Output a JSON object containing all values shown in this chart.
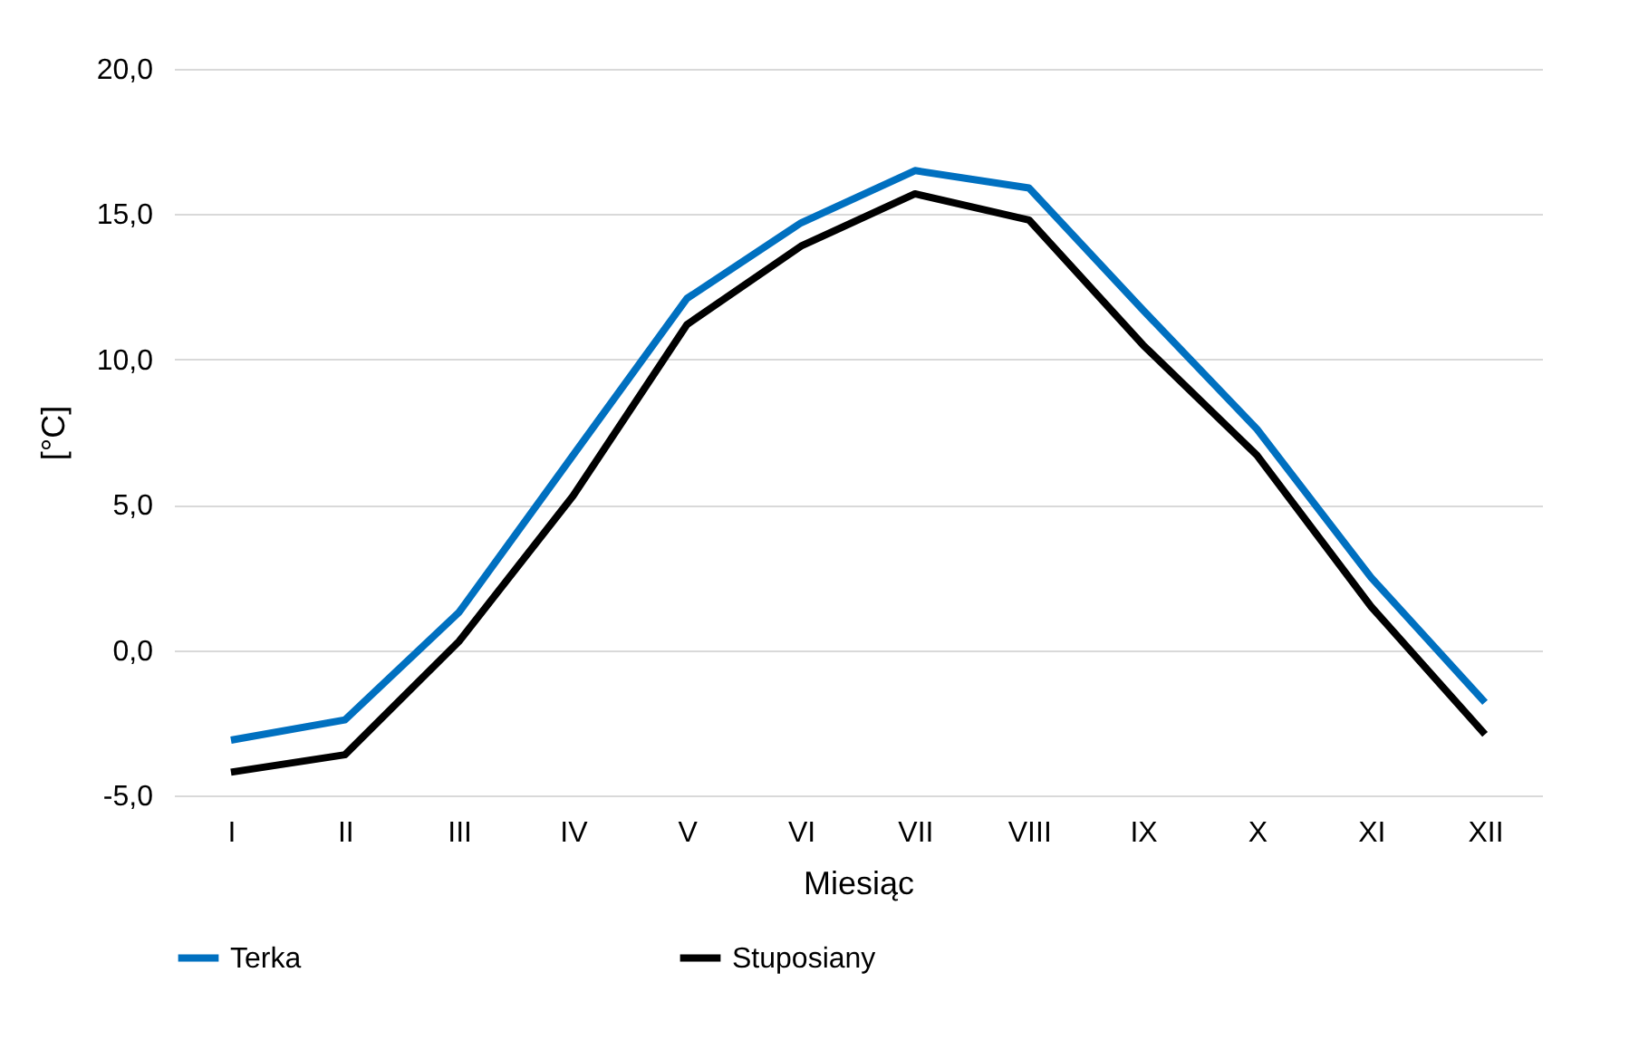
{
  "chart_data": {
    "type": "line",
    "xlabel": "Miesiąc",
    "ylabel": "[°C]",
    "categories": [
      "I",
      "II",
      "III",
      "IV",
      "V",
      "VI",
      "VII",
      "VIII",
      "IX",
      "X",
      "XI",
      "XII"
    ],
    "series": [
      {
        "name": "Terka",
        "color": "#0070c0",
        "values": [
          -3.1,
          -2.4,
          1.3,
          6.7,
          12.1,
          14.7,
          16.5,
          15.9,
          11.7,
          7.6,
          2.5,
          -1.8
        ]
      },
      {
        "name": "Stuposiany",
        "color": "#000000",
        "values": [
          -4.2,
          -3.6,
          0.3,
          5.3,
          11.2,
          13.9,
          15.7,
          14.8,
          10.5,
          6.7,
          1.5,
          -2.9
        ]
      }
    ],
    "ylim": [
      -5,
      20
    ],
    "yticks": [
      {
        "value": -5,
        "label": "-5,0"
      },
      {
        "value": 0,
        "label": "0,0"
      },
      {
        "value": 5,
        "label": "5,0"
      },
      {
        "value": 10,
        "label": "10,0"
      },
      {
        "value": 15,
        "label": "15,0"
      },
      {
        "value": 20,
        "label": "20,0"
      }
    ],
    "grid": "y",
    "legend": "bottom",
    "marker": "none",
    "line_style": "solid"
  }
}
